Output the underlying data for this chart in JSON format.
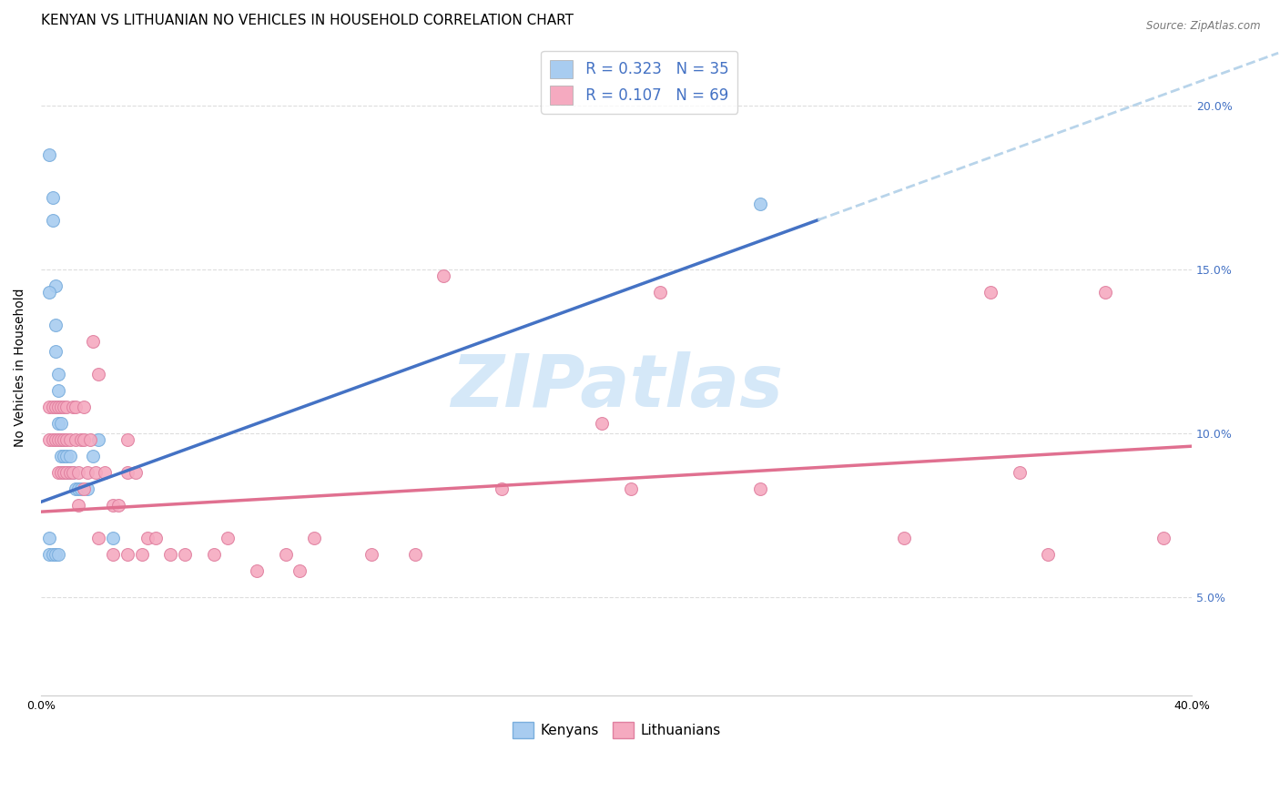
{
  "title": "KENYAN VS LITHUANIAN NO VEHICLES IN HOUSEHOLD CORRELATION CHART",
  "source": "Source: ZipAtlas.com",
  "ylabel": "No Vehicles in Household",
  "xlim": [
    0.0,
    0.4
  ],
  "ylim": [
    0.02,
    0.22
  ],
  "kenyan_color": "#a8ccf0",
  "kenyan_edge_color": "#7aaedd",
  "lithuanian_color": "#f5aac0",
  "lithuanian_edge_color": "#e080a0",
  "kenyan_R": 0.323,
  "kenyan_N": 35,
  "lithuanian_R": 0.107,
  "lithuanian_N": 69,
  "kenyan_line_color": "#4472c4",
  "lithuanian_line_color": "#e07090",
  "dashed_line_color": "#b8d4ea",
  "kenyan_line_x0": 0.0,
  "kenyan_line_y0": 0.079,
  "kenyan_line_x1": 0.27,
  "kenyan_line_y1": 0.165,
  "lith_line_x0": 0.0,
  "lith_line_y0": 0.076,
  "lith_line_x1": 0.4,
  "lith_line_y1": 0.096,
  "watermark_text": "ZIPatlas",
  "watermark_color": "#d5e8f8",
  "background_color": "#ffffff",
  "grid_color": "#dddddd",
  "title_fontsize": 11,
  "ylabel_fontsize": 10,
  "tick_fontsize": 9,
  "right_tick_color": "#4472c4",
  "legend_top_labelcolor": "#4472c4",
  "kenyan_x": [
    0.003,
    0.004,
    0.004,
    0.005,
    0.005,
    0.005,
    0.006,
    0.006,
    0.006,
    0.006,
    0.007,
    0.007,
    0.007,
    0.008,
    0.008,
    0.008,
    0.009,
    0.009,
    0.01,
    0.01,
    0.011,
    0.012,
    0.013,
    0.014,
    0.016,
    0.018,
    0.02,
    0.025,
    0.003,
    0.003,
    0.004,
    0.005,
    0.006,
    0.25,
    0.003
  ],
  "kenyan_y": [
    0.185,
    0.172,
    0.165,
    0.145,
    0.133,
    0.125,
    0.118,
    0.113,
    0.108,
    0.103,
    0.103,
    0.098,
    0.093,
    0.098,
    0.093,
    0.088,
    0.093,
    0.088,
    0.093,
    0.088,
    0.088,
    0.083,
    0.083,
    0.083,
    0.083,
    0.093,
    0.098,
    0.068,
    0.068,
    0.063,
    0.063,
    0.063,
    0.063,
    0.17,
    0.143
  ],
  "lithuanian_x": [
    0.003,
    0.003,
    0.004,
    0.004,
    0.005,
    0.005,
    0.006,
    0.006,
    0.006,
    0.007,
    0.007,
    0.007,
    0.008,
    0.008,
    0.008,
    0.009,
    0.009,
    0.009,
    0.01,
    0.01,
    0.011,
    0.011,
    0.012,
    0.012,
    0.013,
    0.013,
    0.014,
    0.015,
    0.015,
    0.016,
    0.017,
    0.018,
    0.019,
    0.02,
    0.022,
    0.025,
    0.027,
    0.03,
    0.03,
    0.033,
    0.037,
    0.04,
    0.045,
    0.05,
    0.06,
    0.065,
    0.075,
    0.085,
    0.09,
    0.095,
    0.115,
    0.13,
    0.14,
    0.16,
    0.195,
    0.205,
    0.215,
    0.25,
    0.3,
    0.33,
    0.34,
    0.35,
    0.37,
    0.39,
    0.015,
    0.02,
    0.025,
    0.03,
    0.035
  ],
  "lithuanian_y": [
    0.108,
    0.098,
    0.108,
    0.098,
    0.108,
    0.098,
    0.108,
    0.098,
    0.088,
    0.108,
    0.098,
    0.088,
    0.108,
    0.098,
    0.088,
    0.108,
    0.098,
    0.088,
    0.098,
    0.088,
    0.108,
    0.088,
    0.108,
    0.098,
    0.088,
    0.078,
    0.098,
    0.108,
    0.098,
    0.088,
    0.098,
    0.128,
    0.088,
    0.118,
    0.088,
    0.078,
    0.078,
    0.098,
    0.088,
    0.088,
    0.068,
    0.068,
    0.063,
    0.063,
    0.063,
    0.068,
    0.058,
    0.063,
    0.058,
    0.068,
    0.063,
    0.063,
    0.148,
    0.083,
    0.103,
    0.083,
    0.143,
    0.083,
    0.068,
    0.143,
    0.088,
    0.063,
    0.143,
    0.068,
    0.083,
    0.068,
    0.063,
    0.063,
    0.063
  ]
}
